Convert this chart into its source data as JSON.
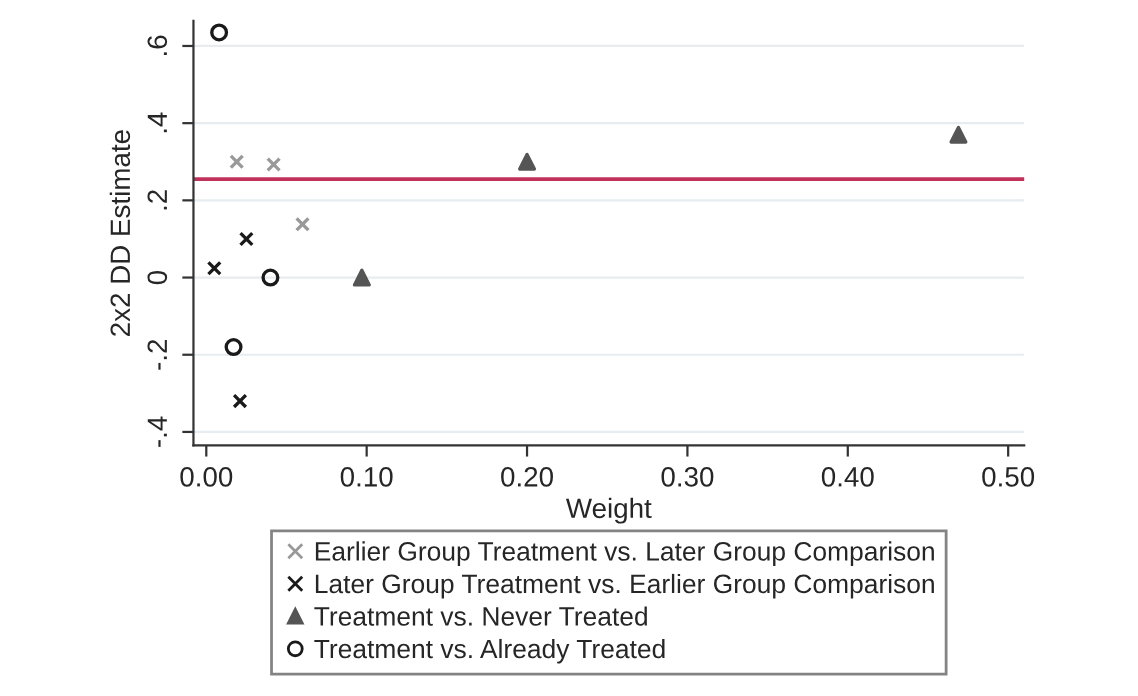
{
  "chart_data": {
    "type": "scatter",
    "xlabel": "Weight",
    "ylabel": "2x2 DD Estimate",
    "xlim": [
      -0.008,
      0.51
    ],
    "xticks": [
      {
        "value": 0,
        "label": "0.00"
      },
      {
        "value": 0.1,
        "label": "0.10"
      },
      {
        "value": 0.2,
        "label": "0.20"
      },
      {
        "value": 0.3,
        "label": "0.30"
      },
      {
        "value": 0.4,
        "label": "0.40"
      },
      {
        "value": 0.5,
        "label": "0.50"
      }
    ],
    "ylim": [
      -0.435,
      0.665
    ],
    "yticks": [
      {
        "value": -0.4,
        "label": "-.4"
      },
      {
        "value": -0.2,
        "label": "-.2"
      },
      {
        "value": 0,
        "label": "0"
      },
      {
        "value": 0.2,
        "label": ".2"
      },
      {
        "value": 0.4,
        "label": ".4"
      },
      {
        "value": 0.6,
        "label": ".6"
      }
    ],
    "grid": "y",
    "legend": "bottom",
    "ref_lines": [
      {
        "axis": "y",
        "value": 0.255,
        "color": "#c0325a"
      }
    ],
    "series": [
      {
        "name": "Earlier Group Treatment vs. Later Group Comparison",
        "color": "#999999",
        "marker": "cross",
        "x": [
          0.019,
          0.042,
          0.06
        ],
        "values": [
          0.3,
          0.293,
          0.138
        ]
      },
      {
        "name": "Later Group Treatment vs. Earlier Group Comparison",
        "color": "#1a1a1a",
        "marker": "cross",
        "x": [
          0.005,
          0.025,
          0.021
        ],
        "values": [
          0.024,
          0.1,
          -0.32
        ]
      },
      {
        "name": "Treatment vs. Never Treated",
        "color": "#555555",
        "marker": "triangle",
        "x": [
          0.097,
          0.2,
          0.469
        ],
        "values": [
          0.0,
          0.3,
          0.37
        ]
      },
      {
        "name": "Treatment vs. Already Treated",
        "color": "#1a1a1a",
        "marker": "circle",
        "x": [
          0.008,
          0.04,
          0.017
        ],
        "values": [
          0.635,
          0.0,
          -0.18
        ]
      }
    ]
  }
}
